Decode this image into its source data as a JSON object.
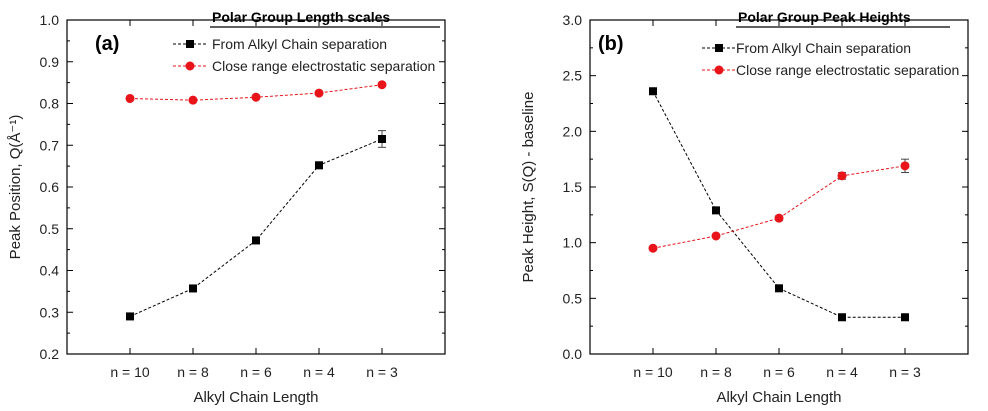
{
  "chart_data": [
    {
      "type": "line",
      "panel_label": "(a)",
      "legend_title": "Polar Group Length scales",
      "xlabel": "Alkyl Chain Length",
      "ylabel": "Peak Position, Q(Å⁻¹)",
      "categories": [
        "n = 10",
        "n = 8",
        "n = 6",
        "n = 4",
        "n = 3"
      ],
      "ylim": [
        0.2,
        1.0
      ],
      "yticks": [
        "0.2",
        "0.3",
        "0.4",
        "0.5",
        "0.6",
        "0.7",
        "0.8",
        "0.9",
        "1.0"
      ],
      "ytick_values": [
        0.2,
        0.3,
        0.4,
        0.5,
        0.6,
        0.7,
        0.8,
        0.9,
        1.0
      ],
      "legend_position": "top-right",
      "grid": false,
      "series": [
        {
          "name": "From Alkyl Chain separation",
          "marker": "square",
          "color": "#000000",
          "values": [
            0.29,
            0.357,
            0.472,
            0.652,
            0.715
          ],
          "errors": [
            0.003,
            0.004,
            0.004,
            0.008,
            0.02
          ]
        },
        {
          "name": "Close range electrostatic separation",
          "marker": "circle",
          "color": "#e8141a",
          "values": [
            0.812,
            0.808,
            0.815,
            0.825,
            0.845
          ],
          "errors": [
            0.0,
            0.0,
            0.0,
            0.0,
            0.0
          ]
        }
      ]
    },
    {
      "type": "line",
      "panel_label": "(b)",
      "legend_title": "Polar Group Peak Heights",
      "xlabel": "Alkyl Chain Length",
      "ylabel": "Peak Height, S(Q) - baseline",
      "categories": [
        "n = 10",
        "n = 8",
        "n = 6",
        "n = 4",
        "n = 3"
      ],
      "ylim": [
        0.0,
        3.0
      ],
      "yticks": [
        "0.0",
        "0.5",
        "1.0",
        "1.5",
        "2.0",
        "2.5",
        "3.0"
      ],
      "ytick_values": [
        0.0,
        0.5,
        1.0,
        1.5,
        2.0,
        2.5,
        3.0
      ],
      "legend_position": "top-right",
      "grid": false,
      "series": [
        {
          "name": "From Alkyl Chain separation",
          "marker": "square",
          "color": "#000000",
          "values": [
            2.36,
            1.29,
            0.59,
            0.33,
            0.33
          ],
          "errors": [
            0.0,
            0.0,
            0.0,
            0.0,
            0.0
          ]
        },
        {
          "name": "Close range electrostatic separation",
          "marker": "circle",
          "color": "#e8141a",
          "values": [
            0.95,
            1.06,
            1.22,
            1.6,
            1.69
          ],
          "errors": [
            0.0,
            0.0,
            0.02,
            0.03,
            0.06
          ]
        }
      ]
    }
  ]
}
